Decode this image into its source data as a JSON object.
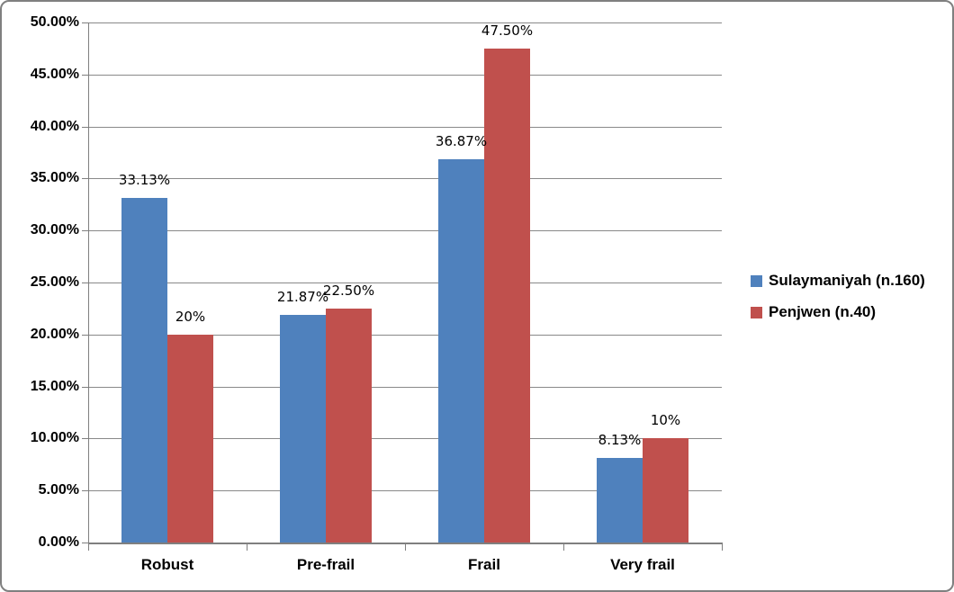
{
  "chart_data": {
    "type": "bar",
    "title": "",
    "xlabel": "",
    "ylabel": "",
    "categories": [
      "Robust",
      "Pre-frail",
      "Frail",
      "Very frail"
    ],
    "series": [
      {
        "name": "Sulaymaniyah (n.160)",
        "color": "#4F81BD",
        "values": [
          33.13,
          21.87,
          36.87,
          8.13
        ],
        "labels": [
          "33.13%",
          "21.87%",
          "36.87%",
          "8.13%"
        ]
      },
      {
        "name": "Penjwen (n.40)",
        "color": "#C0504D",
        "values": [
          20,
          22.5,
          47.5,
          10
        ],
        "labels": [
          "20%",
          "22.50%",
          "47.50%",
          "10%"
        ]
      }
    ],
    "ylim": [
      0,
      50
    ],
    "ytick_step": 5,
    "ytick_labels": [
      "0.00%",
      "5.00%",
      "10.00%",
      "15.00%",
      "20.00%",
      "25.00%",
      "30.00%",
      "35.00%",
      "40.00%",
      "45.00%",
      "50.00%"
    ],
    "grid": true,
    "legend_position": "right-middle",
    "colors": {
      "gridline": "#898989",
      "axis": "#7F7F7F",
      "frame_border": "#808080",
      "background": "#FFFFFF",
      "text": "#000000"
    }
  }
}
